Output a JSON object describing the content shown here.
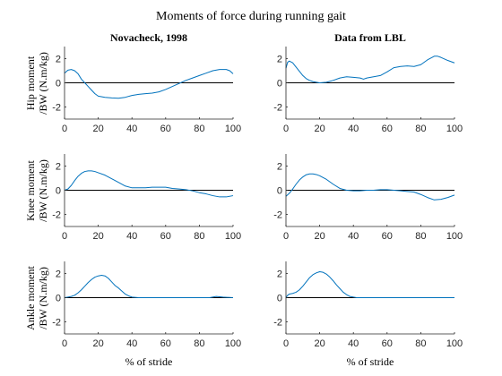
{
  "figure": {
    "title": "Moments of force during running gait",
    "column_titles": [
      "Novacheck, 1998",
      "Data from LBL"
    ],
    "row_labels": [
      [
        "Hip moment",
        "/BW (N.m/kg)"
      ],
      [
        "Knee moment",
        "/BW (N.m/kg)"
      ],
      [
        "Ankle moment",
        "/BW (N.m/kg)"
      ]
    ],
    "xlabel": "% of stride",
    "colors": {
      "series": "#0072BD",
      "axis": "#262626",
      "zero_line": "#000000"
    }
  },
  "chart_data": [
    {
      "type": "line",
      "row": 0,
      "col": 0,
      "xlim": [
        0,
        100
      ],
      "ylim": [
        -3,
        3
      ],
      "xticks": [
        0,
        20,
        40,
        60,
        80,
        100
      ],
      "yticks": [
        -2,
        0,
        2
      ],
      "x": [
        0,
        2,
        4,
        6,
        8,
        10,
        12,
        14,
        16,
        18,
        20,
        24,
        28,
        32,
        36,
        40,
        44,
        48,
        52,
        56,
        60,
        64,
        68,
        72,
        76,
        80,
        84,
        88,
        92,
        96,
        98,
        100
      ],
      "y": [
        0.8,
        1.05,
        1.1,
        1.0,
        0.75,
        0.3,
        0.0,
        -0.3,
        -0.6,
        -0.9,
        -1.1,
        -1.2,
        -1.25,
        -1.28,
        -1.2,
        -1.05,
        -0.95,
        -0.9,
        -0.85,
        -0.75,
        -0.55,
        -0.3,
        -0.05,
        0.2,
        0.4,
        0.6,
        0.8,
        1.0,
        1.1,
        1.1,
        1.0,
        0.75
      ]
    },
    {
      "type": "line",
      "row": 0,
      "col": 1,
      "xlim": [
        0,
        100
      ],
      "ylim": [
        -3,
        3
      ],
      "xticks": [
        0,
        20,
        40,
        60,
        80,
        100
      ],
      "yticks": [
        -2,
        0,
        2
      ],
      "x": [
        0,
        1,
        2,
        4,
        6,
        8,
        10,
        12,
        14,
        16,
        18,
        20,
        24,
        28,
        32,
        36,
        40,
        44,
        46,
        48,
        52,
        56,
        60,
        64,
        68,
        72,
        76,
        80,
        84,
        88,
        90,
        92,
        96,
        100
      ],
      "y": [
        1.2,
        1.7,
        1.8,
        1.65,
        1.3,
        0.95,
        0.6,
        0.35,
        0.2,
        0.1,
        0.05,
        0.0,
        0.05,
        0.2,
        0.4,
        0.5,
        0.45,
        0.4,
        0.3,
        0.4,
        0.5,
        0.6,
        0.9,
        1.25,
        1.35,
        1.4,
        1.35,
        1.5,
        1.9,
        2.2,
        2.2,
        2.1,
        1.85,
        1.65
      ]
    },
    {
      "type": "line",
      "row": 1,
      "col": 0,
      "xlim": [
        0,
        100
      ],
      "ylim": [
        -3,
        3
      ],
      "xticks": [
        0,
        20,
        40,
        60,
        80,
        100
      ],
      "yticks": [
        -2,
        0,
        2
      ],
      "x": [
        0,
        2,
        4,
        6,
        8,
        10,
        12,
        14,
        16,
        18,
        20,
        24,
        28,
        32,
        36,
        40,
        44,
        48,
        52,
        56,
        60,
        64,
        68,
        72,
        76,
        80,
        84,
        88,
        92,
        96,
        100
      ],
      "y": [
        0.0,
        0.1,
        0.4,
        0.8,
        1.15,
        1.4,
        1.55,
        1.6,
        1.6,
        1.55,
        1.45,
        1.25,
        0.95,
        0.65,
        0.35,
        0.2,
        0.2,
        0.2,
        0.25,
        0.25,
        0.25,
        0.15,
        0.1,
        0.05,
        -0.05,
        -0.2,
        -0.3,
        -0.45,
        -0.55,
        -0.55,
        -0.45
      ]
    },
    {
      "type": "line",
      "row": 1,
      "col": 1,
      "xlim": [
        0,
        100
      ],
      "ylim": [
        -3,
        3
      ],
      "xticks": [
        0,
        20,
        40,
        60,
        80,
        100
      ],
      "yticks": [
        -2,
        0,
        2
      ],
      "x": [
        0,
        2,
        4,
        6,
        8,
        10,
        12,
        14,
        16,
        18,
        20,
        24,
        28,
        32,
        36,
        40,
        44,
        48,
        52,
        56,
        60,
        64,
        68,
        72,
        76,
        80,
        84,
        88,
        92,
        96,
        100
      ],
      "y": [
        -0.5,
        -0.25,
        0.1,
        0.5,
        0.85,
        1.1,
        1.28,
        1.35,
        1.35,
        1.3,
        1.2,
        0.9,
        0.5,
        0.15,
        0.0,
        -0.05,
        -0.05,
        0.0,
        0.0,
        0.05,
        0.05,
        0.0,
        -0.05,
        -0.1,
        -0.15,
        -0.35,
        -0.6,
        -0.8,
        -0.75,
        -0.6,
        -0.4
      ]
    },
    {
      "type": "line",
      "row": 2,
      "col": 0,
      "xlim": [
        0,
        100
      ],
      "ylim": [
        -3,
        3
      ],
      "xticks": [
        0,
        20,
        40,
        60,
        80,
        100
      ],
      "yticks": [
        -2,
        0,
        2
      ],
      "x": [
        0,
        2,
        4,
        6,
        8,
        10,
        12,
        14,
        16,
        18,
        20,
        22,
        24,
        26,
        28,
        30,
        32,
        34,
        36,
        38,
        40,
        44,
        50,
        60,
        70,
        80,
        86,
        90,
        94,
        100
      ],
      "y": [
        0.0,
        0.05,
        0.1,
        0.2,
        0.4,
        0.65,
        0.95,
        1.25,
        1.5,
        1.7,
        1.8,
        1.85,
        1.8,
        1.6,
        1.3,
        1.0,
        0.8,
        0.55,
        0.3,
        0.15,
        0.05,
        0.0,
        0.0,
        0.0,
        0.0,
        0.0,
        0.0,
        0.1,
        0.05,
        0.0
      ]
    },
    {
      "type": "line",
      "row": 2,
      "col": 1,
      "xlim": [
        0,
        100
      ],
      "ylim": [
        -3,
        3
      ],
      "xticks": [
        0,
        20,
        40,
        60,
        80,
        100
      ],
      "yticks": [
        -2,
        0,
        2
      ],
      "x": [
        0,
        1,
        2,
        4,
        6,
        8,
        10,
        12,
        14,
        16,
        18,
        20,
        22,
        24,
        26,
        28,
        30,
        32,
        34,
        36,
        38,
        40,
        42,
        44,
        48,
        60,
        80,
        100
      ],
      "y": [
        0.0,
        0.2,
        0.3,
        0.35,
        0.45,
        0.65,
        0.95,
        1.3,
        1.65,
        1.9,
        2.05,
        2.15,
        2.1,
        1.95,
        1.7,
        1.4,
        1.05,
        0.75,
        0.45,
        0.25,
        0.1,
        0.05,
        0.0,
        0.0,
        0.0,
        0.0,
        0.0,
        0.0
      ]
    }
  ]
}
